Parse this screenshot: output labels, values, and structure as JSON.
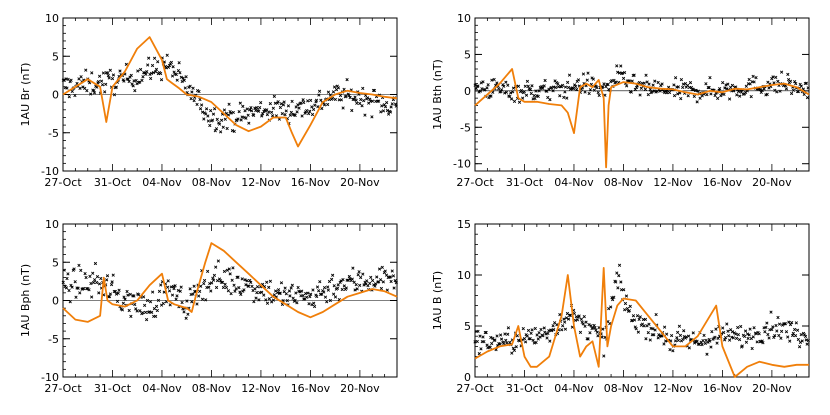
{
  "colors": {
    "model": "#f07f0a",
    "obs": "#000000",
    "axis": "#000000"
  },
  "x_ticks": [
    "27-Oct",
    "31-Oct",
    "04-Nov",
    "08-Nov",
    "12-Nov",
    "16-Nov",
    "20-Nov"
  ],
  "chart_data": [
    {
      "type": "line",
      "ylabel": "1AU Br (nT)",
      "xlim": [
        0,
        27
      ],
      "ylim": [
        -10,
        10
      ],
      "y_ticks": [
        "10",
        "5",
        "0",
        "-5",
        "-10"
      ],
      "model_series": {
        "name": "model",
        "x": [
          0,
          2,
          3,
          3.5,
          4,
          5,
          6,
          7,
          8,
          8.4,
          8.8,
          9.4,
          10,
          11,
          12,
          13,
          14,
          15,
          16,
          17,
          18,
          18.5,
          19,
          20,
          21,
          22,
          23,
          24,
          25,
          26,
          27
        ],
        "y": [
          0,
          2,
          1,
          -3.6,
          1,
          3,
          6,
          7.5,
          4.5,
          2,
          1.5,
          0.8,
          0,
          -0.3,
          -1,
          -2.5,
          -4,
          -4.8,
          -4.2,
          -3,
          -3,
          -5,
          -6.8,
          -4,
          -1,
          0,
          0.5,
          0.2,
          0,
          -0.3,
          -0.5
        ]
      },
      "observations": {
        "name": "observed",
        "trend_x": [
          0,
          3,
          5,
          7,
          8.5,
          10,
          11,
          12,
          14,
          16,
          18,
          20,
          22,
          24,
          27
        ],
        "trend_y": [
          1,
          1.5,
          2,
          3,
          4,
          1,
          -1,
          -3,
          -3,
          -2,
          -2,
          -1.5,
          0,
          -0.5,
          -1.5
        ],
        "spread": 1.7
      }
    },
    {
      "type": "line",
      "ylabel": "1AU Bth (nT)",
      "xlim": [
        0,
        27
      ],
      "ylim": [
        -11,
        10
      ],
      "y_ticks": [
        "10",
        "5",
        "0",
        "-5",
        "-10"
      ],
      "model_series": {
        "name": "model",
        "x": [
          0,
          2,
          3,
          3.5,
          4,
          5,
          6,
          7,
          7.5,
          8,
          8.5,
          9,
          9.5,
          10,
          10.4,
          10.6,
          10.8,
          11,
          12,
          13,
          14,
          15,
          16,
          17,
          18,
          19,
          20,
          21,
          22,
          23,
          24,
          25,
          26,
          27
        ],
        "y": [
          -2,
          1,
          3,
          -1,
          -1.5,
          -1.5,
          -1.8,
          -2,
          -3,
          -5.8,
          0.5,
          1,
          0.5,
          1.5,
          -1,
          -10.5,
          -2,
          0.5,
          1.2,
          1,
          0.5,
          0.3,
          0.2,
          -0.2,
          -0.5,
          0,
          -0.2,
          0.3,
          0.2,
          0.5,
          0.8,
          1,
          0.5,
          -0.5
        ]
      },
      "observations": {
        "name": "observed",
        "trend_x": [
          0,
          3,
          6,
          7.5,
          9,
          10.5,
          11.5,
          13,
          16,
          19,
          22,
          25,
          27
        ],
        "trend_y": [
          0.5,
          0,
          0,
          0.5,
          1,
          0,
          2,
          0.5,
          0,
          0,
          0.5,
          1,
          0
        ],
        "spread": 1.5
      }
    },
    {
      "type": "line",
      "ylabel": "1AU Bph (nT)",
      "xlim": [
        0,
        27
      ],
      "ylim": [
        -10,
        10
      ],
      "y_ticks": [
        "10",
        "5",
        "0",
        "-5",
        "-10"
      ],
      "model_series": {
        "name": "model",
        "x": [
          0,
          1,
          2,
          3,
          3.3,
          3.6,
          4,
          5,
          6,
          7,
          8,
          8.5,
          9,
          10,
          10.4,
          10.8,
          11.5,
          12,
          13,
          14,
          15,
          16,
          17,
          18,
          19,
          20,
          21,
          22,
          23,
          24,
          25,
          26,
          27
        ],
        "y": [
          -1,
          -2.5,
          -2.8,
          -2,
          3,
          0,
          -0.5,
          -0.8,
          0,
          2,
          3.5,
          0,
          -0.5,
          -1,
          -1.5,
          1,
          5,
          7.5,
          6.5,
          5,
          3.5,
          2,
          0.5,
          -0.5,
          -1.5,
          -2.2,
          -1.5,
          -0.5,
          0.5,
          1,
          1.5,
          1.2,
          0.5
        ]
      },
      "observations": {
        "name": "observed",
        "trend_x": [
          0,
          3,
          5,
          7,
          8.5,
          10,
          11,
          12.5,
          15,
          18,
          20,
          22,
          24,
          27
        ],
        "trend_y": [
          2,
          2.5,
          0,
          -1,
          1.5,
          -1,
          2,
          3,
          2,
          0.5,
          0.5,
          2,
          2.5,
          3
        ],
        "spread": 2
      }
    },
    {
      "type": "line",
      "ylabel": "1AU B (nT)",
      "xlim": [
        0,
        27
      ],
      "ylim": [
        0,
        15
      ],
      "y_ticks": [
        "15",
        "10",
        "5",
        "0"
      ],
      "model_series": {
        "name": "model",
        "x": [
          0,
          1,
          2,
          3,
          3.5,
          4,
          4.5,
          5,
          6,
          7,
          7.5,
          8,
          8.5,
          9,
          9.5,
          10,
          10.4,
          10.7,
          11,
          11.5,
          12,
          13,
          14,
          15,
          16,
          17,
          18,
          19,
          19.5,
          20,
          21,
          22,
          23,
          24,
          25,
          26,
          27
        ],
        "y": [
          1.8,
          2.5,
          3,
          3.2,
          5,
          2,
          1,
          1,
          2,
          6,
          10,
          5,
          2,
          3,
          3.5,
          1,
          10.7,
          3,
          5,
          7,
          7.7,
          7.5,
          6,
          4.5,
          3,
          3,
          4,
          6,
          7,
          3,
          0,
          1,
          1.5,
          1.2,
          1,
          1.2,
          1.2
        ]
      },
      "observations": {
        "name": "observed",
        "trend_x": [
          0,
          3,
          5,
          6,
          7.5,
          9,
          10.5,
          11.5,
          12.5,
          14,
          16,
          18,
          20,
          22,
          24,
          27
        ],
        "trend_y": [
          3.5,
          3.5,
          4,
          4.5,
          6,
          5,
          3.5,
          10,
          6,
          5,
          3.5,
          3.5,
          4,
          4,
          5,
          4
        ],
        "spread": 1.2,
        "min": 0.5
      }
    }
  ]
}
